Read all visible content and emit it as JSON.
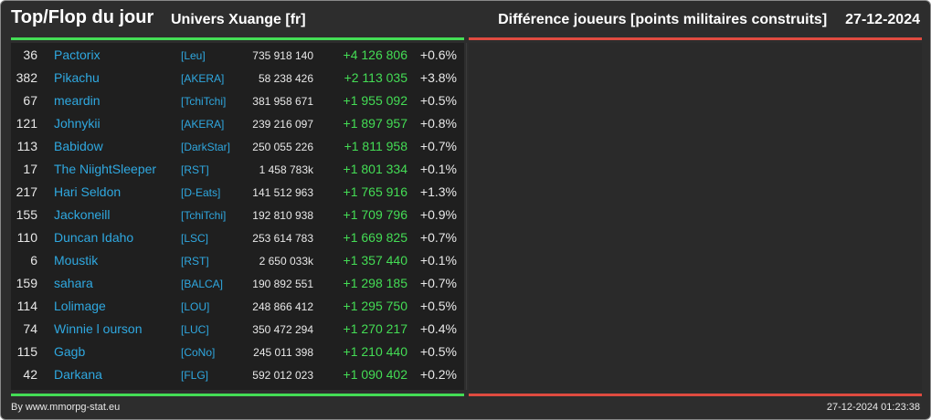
{
  "header": {
    "title": "Top/Flop du jour",
    "univers": "Univers Xuange [fr]",
    "category": "Différence joueurs [points militaires construits]",
    "date": "27-12-2024"
  },
  "colors": {
    "top_bar": "#44dd55",
    "flop_bar": "#e04b40",
    "link": "#2fa8e0",
    "positive": "#44dd55"
  },
  "rows": [
    {
      "rank": "36",
      "name": "Pactorix",
      "ally": "[Leu]",
      "points": "735 918 140",
      "diff": "+4 126 806",
      "pct": "+0.6%"
    },
    {
      "rank": "382",
      "name": "Pikachu",
      "ally": "[AKERA]",
      "points": "58 238 426",
      "diff": "+2 113 035",
      "pct": "+3.8%"
    },
    {
      "rank": "67",
      "name": "meardin",
      "ally": "[TchiTchi]",
      "points": "381 958 671",
      "diff": "+1 955 092",
      "pct": "+0.5%"
    },
    {
      "rank": "121",
      "name": "Johnykii",
      "ally": "[AKERA]",
      "points": "239 216 097",
      "diff": "+1 897 957",
      "pct": "+0.8%"
    },
    {
      "rank": "113",
      "name": "Babidow",
      "ally": "[DarkStar]",
      "points": "250 055 226",
      "diff": "+1 811 958",
      "pct": "+0.7%"
    },
    {
      "rank": "17",
      "name": "The NiightSleeper",
      "ally": "[RST]",
      "points": "1 458 783k",
      "diff": "+1 801 334",
      "pct": "+0.1%"
    },
    {
      "rank": "217",
      "name": "Hari Seldon",
      "ally": "[D-Eats]",
      "points": "141 512 963",
      "diff": "+1 765 916",
      "pct": "+1.3%"
    },
    {
      "rank": "155",
      "name": "Jackoneill",
      "ally": "[TchiTchi]",
      "points": "192 810 938",
      "diff": "+1 709 796",
      "pct": "+0.9%"
    },
    {
      "rank": "110",
      "name": "Duncan Idaho",
      "ally": "[LSC]",
      "points": "253 614 783",
      "diff": "+1 669 825",
      "pct": "+0.7%"
    },
    {
      "rank": "6",
      "name": "Moustik",
      "ally": "[RST]",
      "points": "2 650 033k",
      "diff": "+1 357 440",
      "pct": "+0.1%"
    },
    {
      "rank": "159",
      "name": "sahara",
      "ally": "[BALCA]",
      "points": "190 892 551",
      "diff": "+1 298 185",
      "pct": "+0.7%"
    },
    {
      "rank": "114",
      "name": "Lolimage",
      "ally": "[LOU]",
      "points": "248 866 412",
      "diff": "+1 295 750",
      "pct": "+0.5%"
    },
    {
      "rank": "74",
      "name": "Winnie l ourson",
      "ally": "[LUC]",
      "points": "350 472 294",
      "diff": "+1 270 217",
      "pct": "+0.4%"
    },
    {
      "rank": "115",
      "name": "Gagb",
      "ally": "[CoNo]",
      "points": "245 011 398",
      "diff": "+1 210 440",
      "pct": "+0.5%"
    },
    {
      "rank": "42",
      "name": "Darkana",
      "ally": "[FLG]",
      "points": "592 012 023",
      "diff": "+1 090 402",
      "pct": "+0.2%"
    }
  ],
  "footer": {
    "credit": "By www.mmorpg-stat.eu",
    "timestamp": "27-12-2024 01:23:38"
  }
}
